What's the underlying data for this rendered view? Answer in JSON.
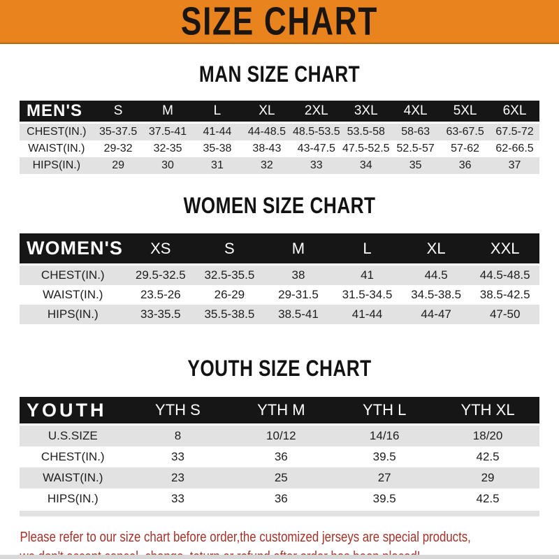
{
  "theme": {
    "banner_bg": "#E8831E",
    "banner_text": "#1A1511",
    "bar_bg": "#161616",
    "bar_text": "#FFFFFF",
    "row_gray": "#E2E2E2",
    "notice_red": "#A33229"
  },
  "banner": {
    "title": "SIZE CHART"
  },
  "sections": [
    {
      "id": "men",
      "heading": "MAN SIZE CHART",
      "table": {
        "header_label": "MEN'S",
        "columns": [
          "S",
          "M",
          "L",
          "XL",
          "2XL",
          "3XL",
          "4XL",
          "5XL",
          "6XL"
        ],
        "rows": [
          {
            "label": "CHEST(IN.)",
            "values": [
              "35-37.5",
              "37.5-41",
              "41-44",
              "44-48.5",
              "48.5-53.5",
              "53.5-58",
              "58-63",
              "63-67.5",
              "67.5-72"
            ]
          },
          {
            "label": "WAIST(IN.)",
            "values": [
              "29-32",
              "32-35",
              "35-38",
              "38-43",
              "43-47.5",
              "47.5-52.5",
              "52.5-57",
              "57-62",
              "62-66.5"
            ]
          },
          {
            "label": "HIPS(IN.)",
            "values": [
              "29",
              "30",
              "31",
              "32",
              "33",
              "34",
              "35",
              "36",
              "37"
            ]
          }
        ]
      }
    },
    {
      "id": "women",
      "heading": "WOMEN SIZE CHART",
      "table": {
        "header_label": "WOMEN'S",
        "columns": [
          "XS",
          "S",
          "M",
          "L",
          "XL",
          "XXL"
        ],
        "rows": [
          {
            "label": "CHEST(IN.)",
            "values": [
              "29.5-32.5",
              "32.5-35.5",
              "38",
              "41",
              "44.5",
              "44.5-48.5"
            ]
          },
          {
            "label": "WAIST(IN.)",
            "values": [
              "23.5-26",
              "26-29",
              "29-31.5",
              "31.5-34.5",
              "34.5-38.5",
              "38.5-42.5"
            ]
          },
          {
            "label": "HIPS(IN.)",
            "values": [
              "33-35.5",
              "35.5-38.5",
              "38.5-41",
              "41-44",
              "44-47",
              "47-50"
            ]
          }
        ]
      }
    },
    {
      "id": "youth",
      "heading": "YOUTH SIZE CHART",
      "table": {
        "header_label": "YOUTH",
        "columns": [
          "YTH S",
          "YTH M",
          "YTH L",
          "YTH XL"
        ],
        "rows": [
          {
            "label": "U.S.SIZE",
            "values": [
              "8",
              "10/12",
              "14/16",
              "18/20"
            ]
          },
          {
            "label": "CHEST(IN.)",
            "values": [
              "33",
              "36",
              "39.5",
              "42.5"
            ]
          },
          {
            "label": "WAIST(IN.)",
            "values": [
              "23",
              "25",
              "27",
              "29"
            ]
          },
          {
            "label": "HIPS(IN.)",
            "values": [
              "33",
              "36",
              "39.5",
              "42.5"
            ]
          }
        ]
      }
    }
  ],
  "footer": {
    "lines": [
      "Please refer to our size chart before order,the customized jerseys are special products,",
      "we don't accept cancel, change, teturn or refund after order has been placed!"
    ]
  }
}
